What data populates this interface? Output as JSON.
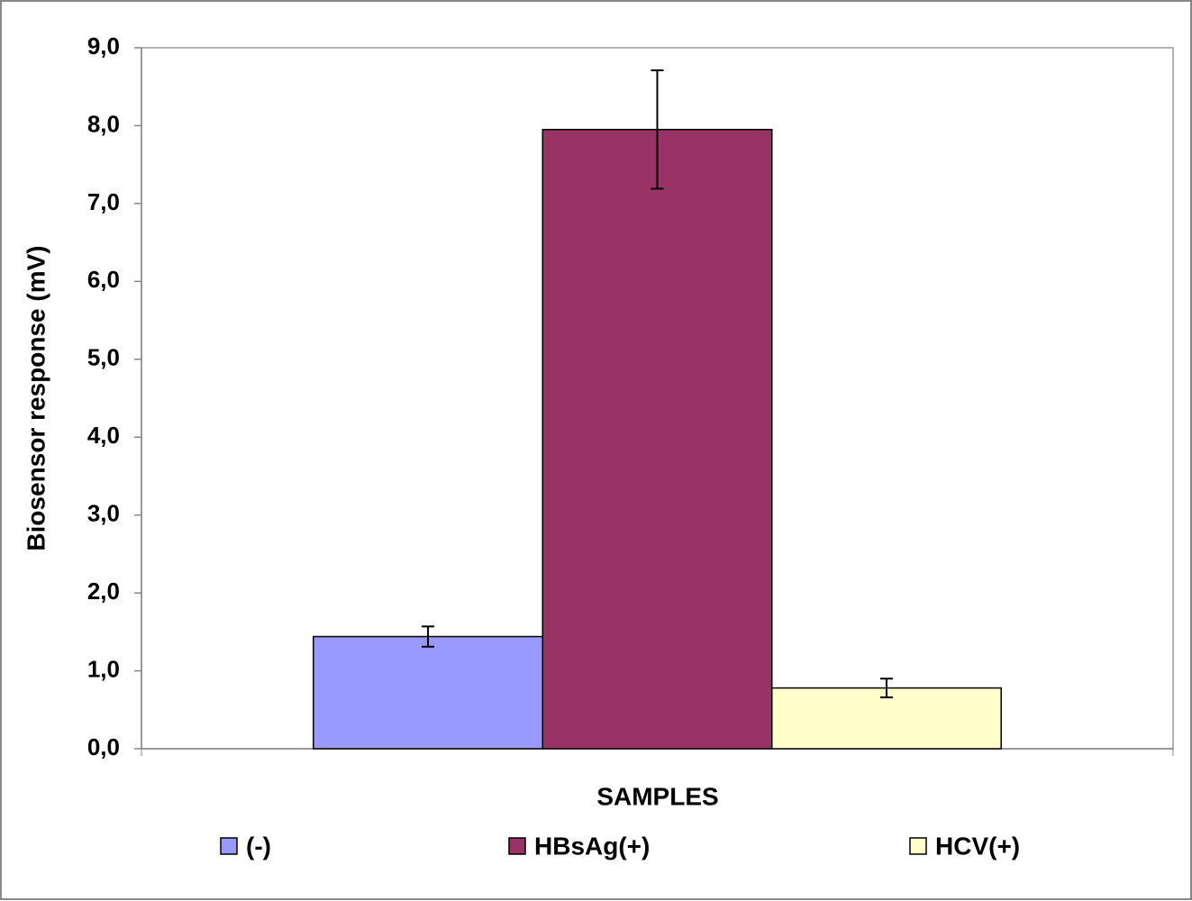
{
  "chart_data": {
    "type": "bar",
    "x_label": "SAMPLES",
    "y_label": "Biosensor response (mV)",
    "categories": [
      null
    ],
    "series": [
      {
        "name": "(-)",
        "color": "#9999ff",
        "values": [
          1.44
        ],
        "errors": [
          0.13
        ]
      },
      {
        "name": "HBsAg(+)",
        "color": "#993366",
        "values": [
          7.95
        ],
        "errors": [
          0.76
        ]
      },
      {
        "name": "HCV(+)",
        "color": "#ffffcc",
        "values": [
          0.78
        ],
        "errors": [
          0.12
        ]
      }
    ],
    "ylim": [
      0,
      9
    ],
    "yticks": [
      {
        "value": 0,
        "label": "0,0"
      },
      {
        "value": 1,
        "label": "1,0"
      },
      {
        "value": 2,
        "label": "2,0"
      },
      {
        "value": 3,
        "label": "3,0"
      },
      {
        "value": 4,
        "label": "4,0"
      },
      {
        "value": 5,
        "label": "5,0"
      },
      {
        "value": 6,
        "label": "6,0"
      },
      {
        "value": 7,
        "label": "7,0"
      },
      {
        "value": 8,
        "label": "8,0"
      },
      {
        "value": 9,
        "label": "9,0"
      }
    ],
    "grid": false,
    "legend": "bottom"
  }
}
